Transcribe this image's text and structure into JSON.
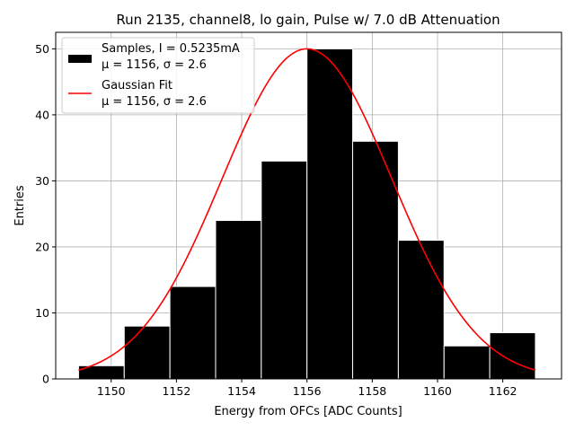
{
  "chart_data": {
    "type": "bar",
    "title": "Run 2135, channel8, lo gain, Pulse w/ 7.0 dB Attenuation",
    "xlabel": "Energy from OFCs [ADC Counts]",
    "ylabel": "Entries",
    "xlim": [
      1148.3,
      1163.8
    ],
    "ylim": [
      0,
      52.5
    ],
    "xticks": [
      1150,
      1152,
      1154,
      1156,
      1158,
      1160,
      1162
    ],
    "yticks": [
      0,
      10,
      20,
      30,
      40,
      50
    ],
    "grid": true,
    "legend_position": "top-left",
    "bin_edges": [
      1149.0,
      1150.4,
      1151.8,
      1153.2,
      1154.6,
      1156.0,
      1157.4,
      1158.8,
      1160.2,
      1161.6,
      1163.0
    ],
    "counts": [
      2,
      8,
      14,
      24,
      33,
      50,
      36,
      21,
      5,
      7
    ],
    "bar_color": "#000000",
    "fit_color": "#ff0000",
    "fit": {
      "mu": 1156.0,
      "sigma": 2.6,
      "amplitude": 50,
      "x_range": [
        1149.0,
        1163.0
      ]
    },
    "legend": [
      {
        "type": "bar",
        "line1": "Samples, I = 0.5235mA",
        "line2": "μ = 1156, σ = 2.6"
      },
      {
        "type": "line",
        "line1": "Gaussian Fit",
        "line2": "μ = 1156, σ = 2.6"
      }
    ]
  }
}
